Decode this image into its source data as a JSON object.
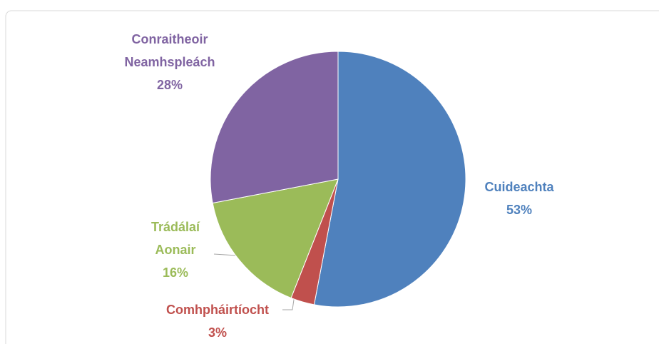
{
  "chart_data": {
    "type": "pie",
    "categories": [
      "Cuideachta",
      "Comhpháirtíocht",
      "Trádálaí Aonair",
      "Conraitheoir Neamhspleách"
    ],
    "values": [
      53,
      3,
      16,
      28
    ],
    "value_labels": [
      "53%",
      "3%",
      "16%",
      "28%"
    ],
    "colors": [
      "#4f81bd",
      "#c0504d",
      "#9bbb59",
      "#8064a2"
    ]
  }
}
